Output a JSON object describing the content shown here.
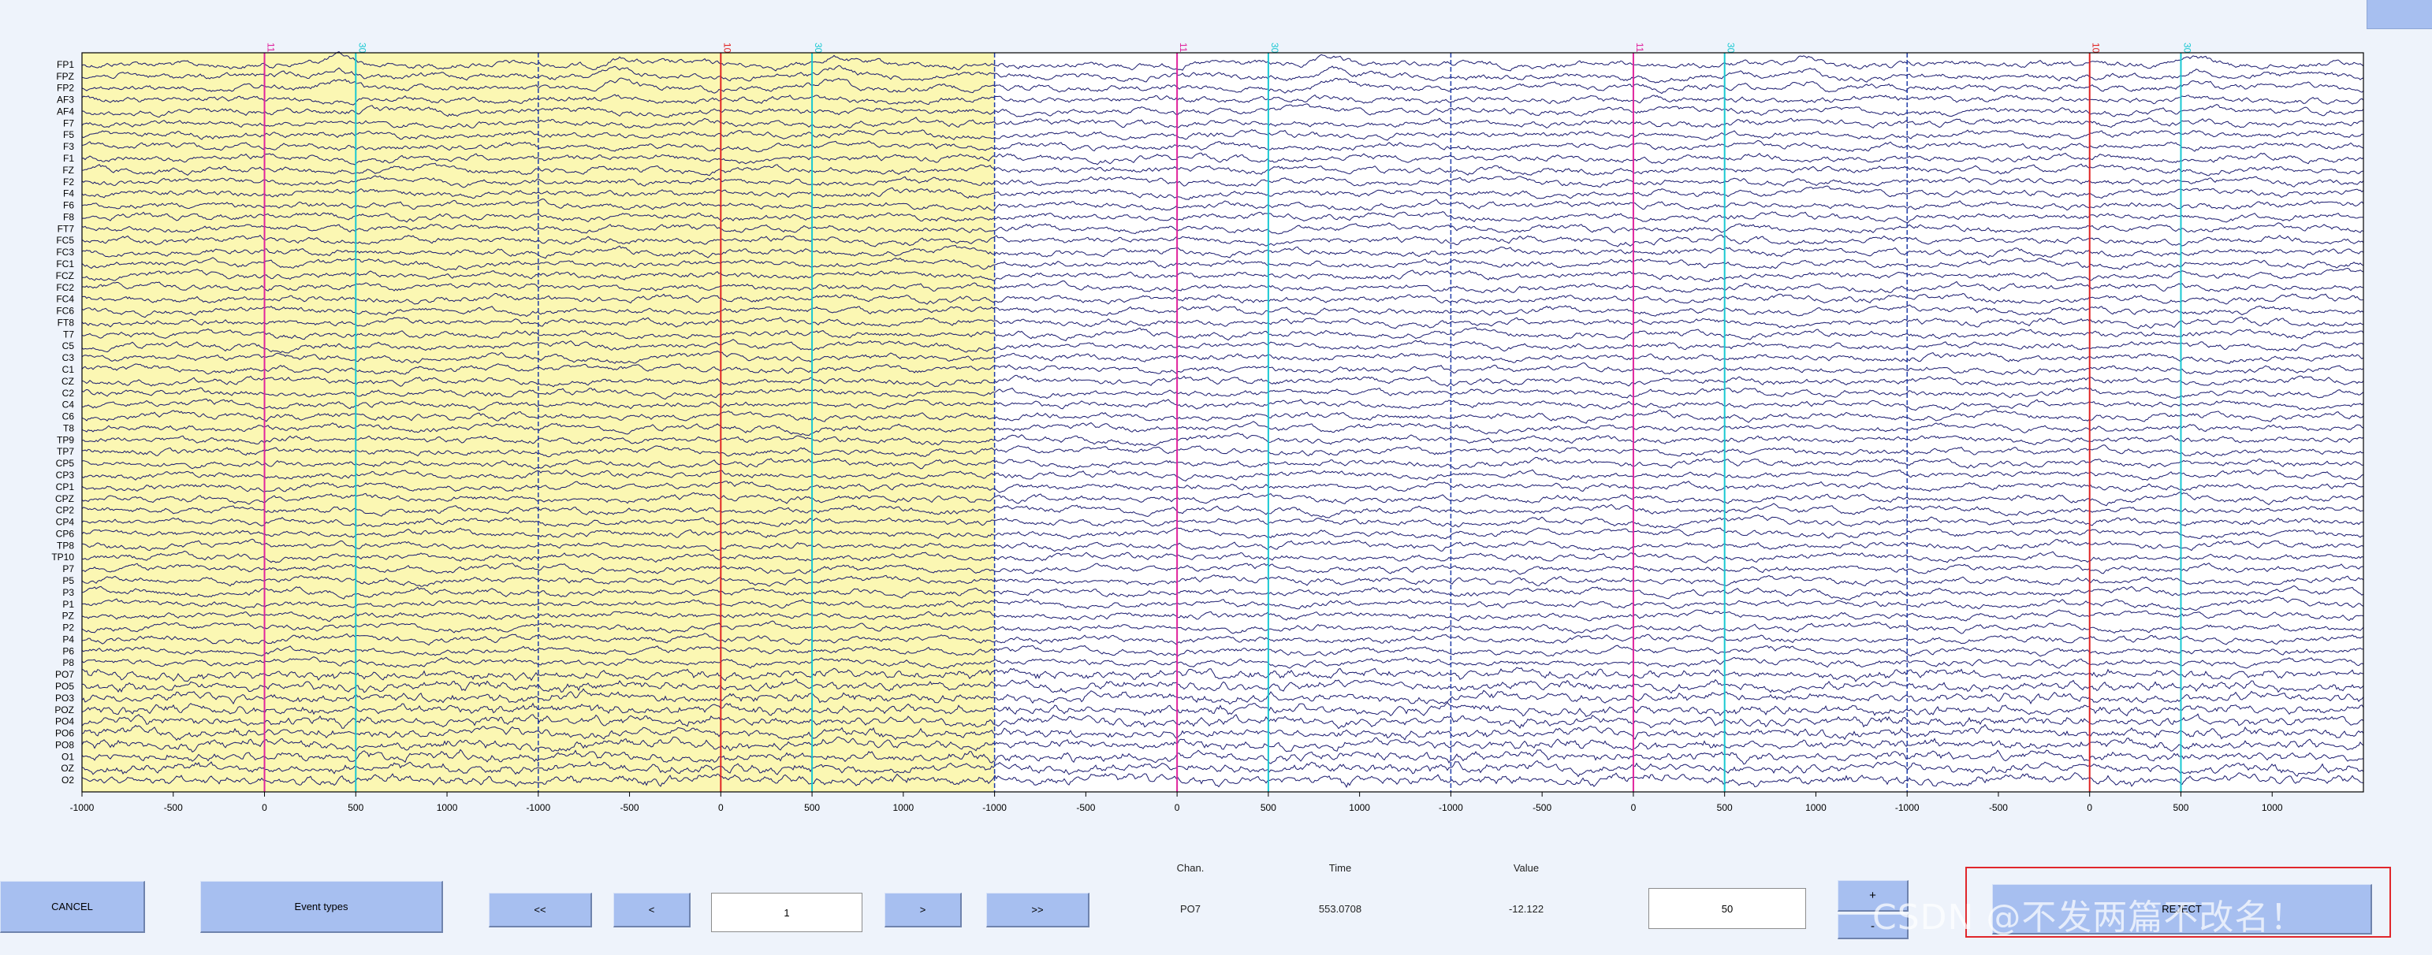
{
  "window": {
    "title": ""
  },
  "chart_data": {
    "type": "line",
    "channels": [
      "FP1",
      "FPZ",
      "FP2",
      "AF3",
      "AF4",
      "F7",
      "F5",
      "F3",
      "F1",
      "FZ",
      "F2",
      "F4",
      "F6",
      "F8",
      "FT7",
      "FC5",
      "FC3",
      "FC1",
      "FCZ",
      "FC2",
      "FC4",
      "FC6",
      "FT8",
      "T7",
      "C5",
      "C3",
      "C1",
      "CZ",
      "C2",
      "C4",
      "C6",
      "T8",
      "TP9",
      "TP7",
      "CP5",
      "CP3",
      "CP1",
      "CPZ",
      "CP2",
      "CP4",
      "CP6",
      "TP8",
      "TP10",
      "P7",
      "P5",
      "P3",
      "P1",
      "PZ",
      "P2",
      "P4",
      "P6",
      "P8",
      "PO7",
      "PO5",
      "PO3",
      "POZ",
      "PO4",
      "PO6",
      "PO8",
      "O1",
      "OZ",
      "O2"
    ],
    "epochs": [
      {
        "xlim": [
          -1000,
          1500
        ],
        "ticks": [
          -1000,
          -500,
          0,
          500,
          1000
        ],
        "selected": true,
        "events": [
          {
            "time": 0,
            "label": "11",
            "color": "#e0249d"
          },
          {
            "time": 500,
            "label": "30",
            "color": "#19c8d2"
          }
        ]
      },
      {
        "xlim": [
          -1000,
          1500
        ],
        "ticks": [
          -1000,
          -500,
          0,
          500,
          1000
        ],
        "selected": true,
        "events": [
          {
            "time": 0,
            "label": "10",
            "color": "#e02424"
          },
          {
            "time": 500,
            "label": "30",
            "color": "#19c8d2"
          }
        ]
      },
      {
        "xlim": [
          -1000,
          1500
        ],
        "ticks": [
          -1000,
          -500,
          0,
          500,
          1000
        ],
        "selected": false,
        "events": [
          {
            "time": 0,
            "label": "11",
            "color": "#e0249d"
          },
          {
            "time": 500,
            "label": "30",
            "color": "#19c8d2"
          }
        ]
      },
      {
        "xlim": [
          -1000,
          1500
        ],
        "ticks": [
          -1000,
          -500,
          0,
          500,
          1000
        ],
        "selected": false,
        "events": [
          {
            "time": 0,
            "label": "11",
            "color": "#e0249d"
          },
          {
            "time": 500,
            "label": "30",
            "color": "#19c8d2"
          }
        ]
      },
      {
        "xlim": [
          -1000,
          1500
        ],
        "ticks": [
          -1000,
          -500,
          0,
          500,
          1000
        ],
        "selected": false,
        "events": [
          {
            "time": 0,
            "label": "10",
            "color": "#e02424"
          },
          {
            "time": 500,
            "label": "30",
            "color": "#19c8d2"
          }
        ]
      }
    ],
    "trace_color": "#1a1a6e",
    "selected_bg": "#fbf7b3",
    "epoch_divider_color": "#1f3ca8",
    "grid": false
  },
  "controls": {
    "cancel_label": "CANCEL",
    "event_types_label": "Event types",
    "prev_fast_label": "<<",
    "prev_label": "<",
    "epoch_value": "1",
    "next_label": ">",
    "next_fast_label": ">>",
    "chan_header": "Chan.",
    "time_header": "Time",
    "value_header": "Value",
    "chan_value": "PO7",
    "time_value": "553.0708",
    "value_value": "-12.122",
    "scale_value": "50",
    "plus_label": "+",
    "minus_label": "-",
    "reject_label": "REJECT"
  },
  "watermark": "CSDN @不发两篇不改名！",
  "colors": {
    "accent": "#a7bff0",
    "highlight": "#e0262b",
    "background": "#eef3fb"
  }
}
